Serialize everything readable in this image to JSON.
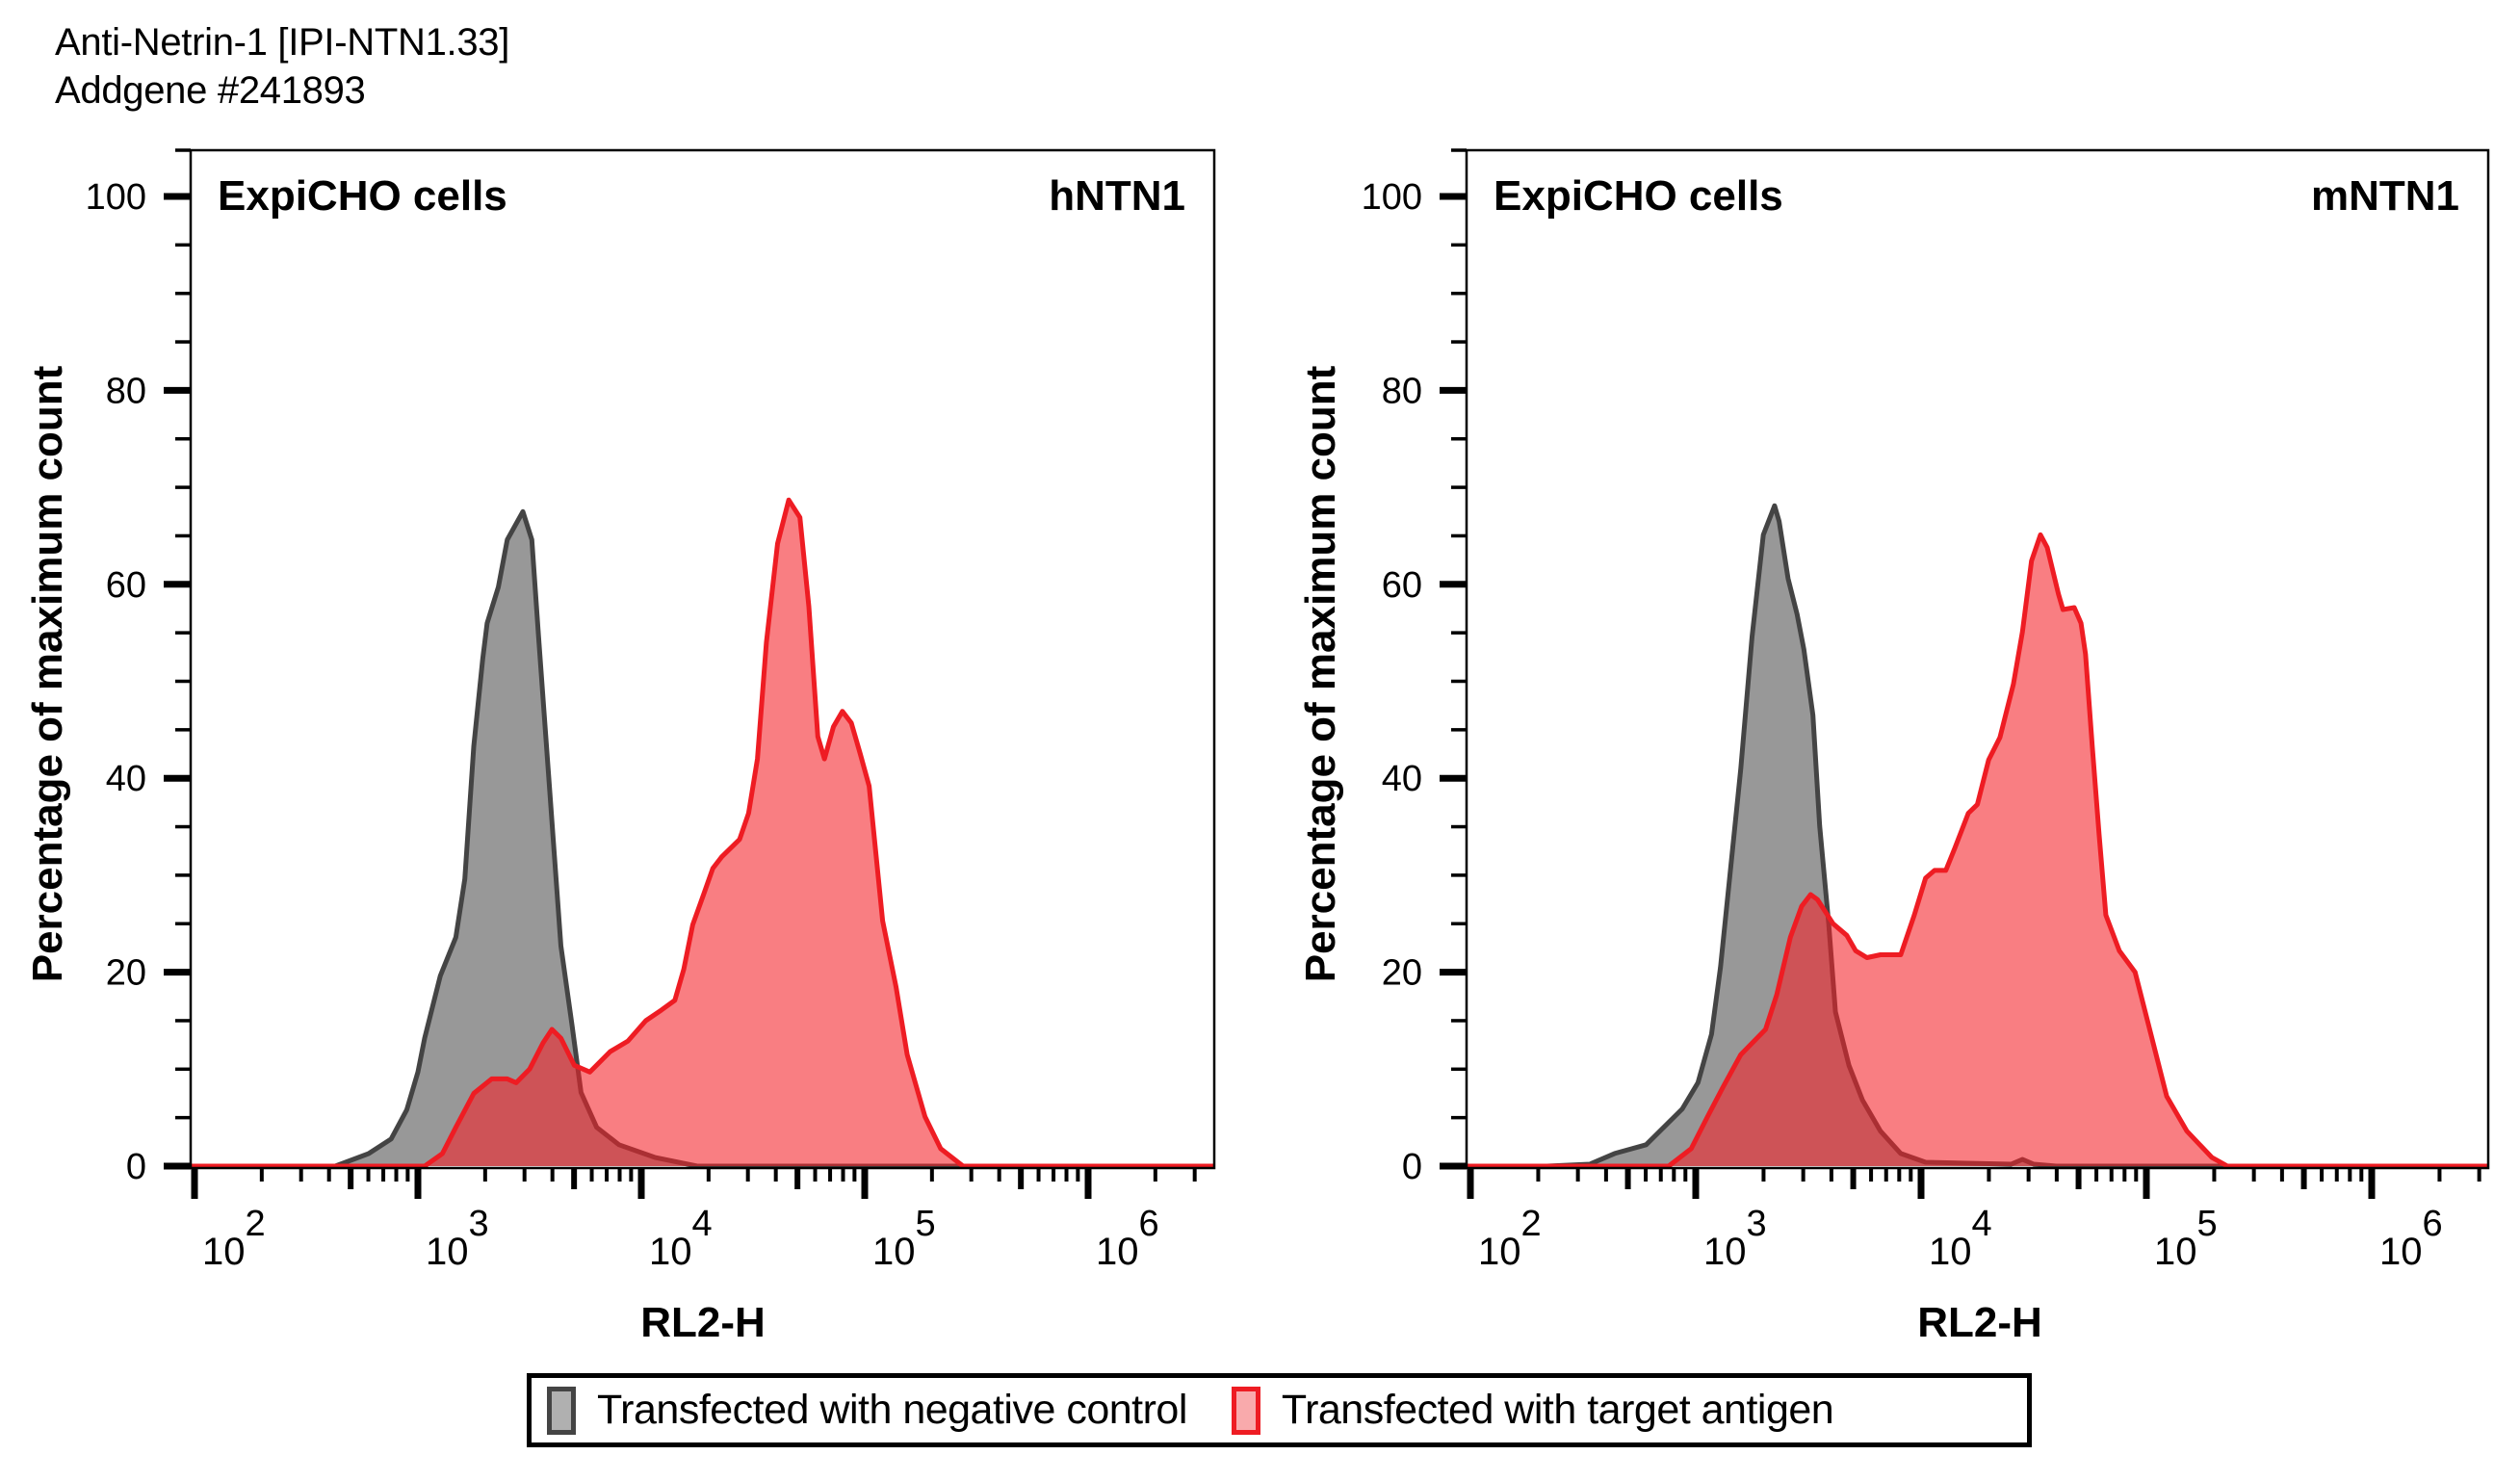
{
  "header": {
    "line1": "Anti-Netrin-1 [IPI-NTN1.33]",
    "line2": "Addgene #241893"
  },
  "colors": {
    "control_fill": "#989898",
    "control_stroke": "#444444",
    "antigen_fill": "rgba(244,32,40,0.58)",
    "antigen_stroke": "#EE1C23",
    "axis": "#000000"
  },
  "legend": {
    "items": [
      {
        "label": "Transfected with negative control",
        "series": "control"
      },
      {
        "label": "Transfected with target antigen",
        "series": "antigen"
      }
    ],
    "placement": "bottom-center"
  },
  "chart_data": [
    {
      "type": "area",
      "title": "",
      "corner_left": "ExpiCHO cells",
      "corner_right": "hNTN1",
      "xlabel": "RL2-H",
      "ylabel": "Percentage of maximum count",
      "xscale": "log10",
      "xlim_log10": [
        1.98,
        6.56
      ],
      "ylim": [
        0,
        105
      ],
      "yticks": [
        0,
        20,
        40,
        60,
        80,
        100
      ],
      "xticks_log10": [
        2,
        3,
        4,
        5,
        6
      ],
      "xtick_labels": [
        {
          "base": "10",
          "exp": "2"
        },
        {
          "base": "10",
          "exp": "3"
        },
        {
          "base": "10",
          "exp": "4"
        },
        {
          "base": "10",
          "exp": "5"
        },
        {
          "base": "10",
          "exp": "6"
        }
      ],
      "grid": false,
      "series": [
        {
          "name": "Transfected with negative control",
          "key": "control",
          "x_log10": [
            2.63,
            2.78,
            2.88,
            2.95,
            3.0,
            3.03,
            3.1,
            3.17,
            3.21,
            3.25,
            3.29,
            3.31,
            3.36,
            3.4,
            3.47,
            3.51,
            3.54,
            3.59,
            3.64,
            3.69,
            3.73,
            3.8,
            3.9,
            4.06,
            4.25
          ],
          "y": [
            0,
            1.3,
            2.8,
            5.8,
            9.7,
            13.2,
            19.6,
            23.6,
            29.6,
            43.3,
            52.3,
            56,
            59.7,
            64.6,
            67.5,
            64.6,
            54.6,
            38.7,
            22.7,
            14.5,
            7.6,
            4,
            2.2,
            0.9,
            0
          ]
        },
        {
          "name": "Transfected with target antigen",
          "key": "antigen",
          "x_log10": [
            3.03,
            3.11,
            3.17,
            3.25,
            3.33,
            3.4,
            3.44,
            3.5,
            3.56,
            3.6,
            3.64,
            3.7,
            3.77,
            3.86,
            3.94,
            4.02,
            4.09,
            4.15,
            4.19,
            4.23,
            4.28,
            4.32,
            4.36,
            4.44,
            4.48,
            4.52,
            4.56,
            4.61,
            4.66,
            4.71,
            4.75,
            4.79,
            4.82,
            4.86,
            4.9,
            4.94,
            4.98,
            5.02,
            5.08,
            5.14,
            5.19,
            5.27,
            5.34,
            5.44
          ],
          "y": [
            0,
            1.3,
            4,
            7.5,
            9,
            9,
            8.6,
            10,
            12.7,
            14.1,
            13.2,
            10.4,
            9.7,
            11.8,
            12.9,
            15,
            16.1,
            17.1,
            20.3,
            24.9,
            28.1,
            30.7,
            31.9,
            33.7,
            36.4,
            42,
            54,
            64.2,
            68.7,
            66.9,
            57.7,
            44.3,
            42,
            45.3,
            46.9,
            45.7,
            42.5,
            39.2,
            25.3,
            18.5,
            11.5,
            5.1,
            1.8,
            0
          ]
        }
      ]
    },
    {
      "type": "area",
      "title": "",
      "corner_left": "ExpiCHO cells",
      "corner_right": "mNTN1",
      "xlabel": "RL2-H",
      "ylabel": "Percentage of maximum count",
      "xscale": "log10",
      "xlim_log10": [
        1.98,
        6.52
      ],
      "ylim": [
        0,
        105
      ],
      "yticks": [
        0,
        20,
        40,
        60,
        80,
        100
      ],
      "xticks_log10": [
        2,
        3,
        4,
        5,
        6
      ],
      "xtick_labels": [
        {
          "base": "10",
          "exp": "2"
        },
        {
          "base": "10",
          "exp": "3"
        },
        {
          "base": "10",
          "exp": "4"
        },
        {
          "base": "10",
          "exp": "5"
        },
        {
          "base": "10",
          "exp": "6"
        }
      ],
      "grid": false,
      "series": [
        {
          "name": "Transfected with negative control",
          "key": "control",
          "x_log10": [
            2.34,
            2.53,
            2.64,
            2.78,
            2.94,
            3.01,
            3.07,
            3.11,
            3.15,
            3.2,
            3.25,
            3.3,
            3.35,
            3.37,
            3.41,
            3.45,
            3.48,
            3.52,
            3.55,
            3.59,
            3.62,
            3.68,
            3.74,
            3.82,
            3.91,
            4.02,
            4.4,
            4.45,
            4.5,
            4.6
          ],
          "y": [
            0,
            0.2,
            1.3,
            2.2,
            5.9,
            8.6,
            13.6,
            20.5,
            29.6,
            41,
            54.6,
            65.1,
            68.1,
            66.5,
            60.6,
            56.9,
            53.3,
            46.5,
            35.1,
            25,
            15.9,
            10.4,
            6.8,
            3.6,
            1.3,
            0.4,
            0.2,
            0.7,
            0.2,
            0
          ]
        },
        {
          "name": "Transfected with target antigen",
          "key": "antigen",
          "x_log10": [
            2.88,
            2.98,
            3.05,
            3.12,
            3.2,
            3.31,
            3.36,
            3.42,
            3.47,
            3.51,
            3.54,
            3.61,
            3.67,
            3.71,
            3.76,
            3.82,
            3.91,
            3.97,
            4.02,
            4.06,
            4.11,
            4.15,
            4.21,
            4.25,
            4.3,
            4.35,
            4.41,
            4.45,
            4.49,
            4.53,
            4.56,
            4.61,
            4.63,
            4.68,
            4.71,
            4.73,
            4.76,
            4.79,
            4.82,
            4.88,
            4.95,
            5.02,
            5.09,
            5.18,
            5.29,
            5.36
          ],
          "y": [
            0,
            1.8,
            5,
            8.1,
            11.5,
            14.1,
            17.7,
            23.6,
            26.8,
            28,
            27.5,
            25,
            23.8,
            22.2,
            21.5,
            21.8,
            21.8,
            25.9,
            29.7,
            30.5,
            30.5,
            32.8,
            36.4,
            37.3,
            41.9,
            44.2,
            49.7,
            55.1,
            62.4,
            65.1,
            63.8,
            59,
            57.4,
            57.6,
            56,
            52.8,
            43.3,
            34.2,
            25.9,
            22.2,
            20,
            13.6,
            7.2,
            3.6,
            0.9,
            0
          ]
        }
      ]
    }
  ]
}
